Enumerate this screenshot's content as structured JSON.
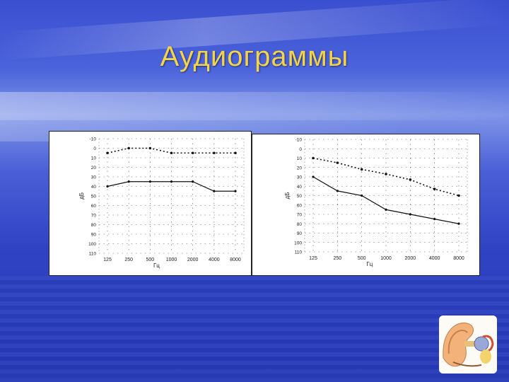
{
  "slide": {
    "title": "Аудиограммы"
  },
  "chart_data": [
    {
      "type": "line",
      "ylabel": "дБ",
      "xlabel": "Гц",
      "categories": [
        "125",
        "250",
        "500",
        "1000",
        "2000",
        "4000",
        "8000"
      ],
      "y_ticks": [
        -10,
        0,
        10,
        20,
        30,
        40,
        50,
        60,
        70,
        80,
        90,
        100,
        110
      ],
      "y_tick_labels": [
        "-10",
        "0",
        "10",
        "20",
        "30",
        "40",
        "50",
        "60",
        "70",
        "80",
        "90",
        "100",
        "110"
      ],
      "ylim": [
        -10,
        110
      ],
      "y_inverted": true,
      "grid": true,
      "series": [
        {
          "style": "dotted",
          "values": [
            5,
            0,
            0,
            5,
            5,
            5,
            5
          ]
        },
        {
          "style": "solid",
          "values": [
            40,
            35,
            35,
            35,
            35,
            45,
            45
          ]
        }
      ]
    },
    {
      "type": "line",
      "ylabel": "дБ",
      "xlabel": "Гц",
      "categories": [
        "125",
        "250",
        "500",
        "1000",
        "2000",
        "4000",
        "8000"
      ],
      "y_ticks": [
        -10,
        0,
        10,
        20,
        30,
        40,
        50,
        60,
        70,
        80,
        90,
        100,
        110
      ],
      "y_tick_labels": [
        "-10",
        "0",
        "10",
        "20",
        "30",
        "40",
        "50",
        "60",
        "70",
        "80",
        "90",
        "100",
        "110"
      ],
      "ylim": [
        -10,
        110
      ],
      "y_inverted": true,
      "grid": true,
      "series": [
        {
          "style": "dotted",
          "values": [
            10,
            15,
            22,
            27,
            33,
            43,
            50
          ]
        },
        {
          "style": "solid",
          "values": [
            30,
            45,
            50,
            65,
            70,
            75,
            80
          ]
        }
      ]
    }
  ]
}
